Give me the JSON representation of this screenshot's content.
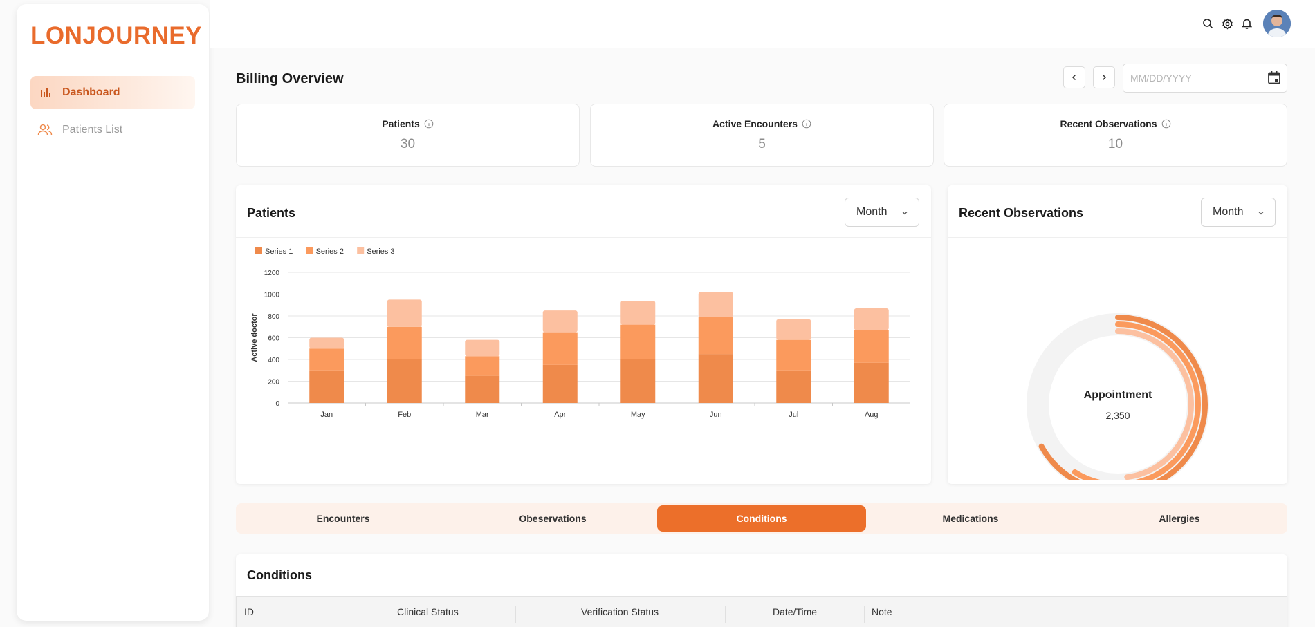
{
  "app": {
    "logo": "LONJOURNEY"
  },
  "sidebar": {
    "items": [
      {
        "label": "Dashboard",
        "icon": "bar-chart-icon",
        "active": true
      },
      {
        "label": "Patients List",
        "icon": "users-icon",
        "active": false
      }
    ]
  },
  "header": {
    "icons": [
      "search-icon",
      "gear-icon",
      "bell-icon"
    ]
  },
  "page": {
    "title": "Billing Overview",
    "date_placeholder": "MM/DD/YYYY"
  },
  "stats": [
    {
      "label": "Patients",
      "value": "30"
    },
    {
      "label": "Active Encounters",
      "value": "5"
    },
    {
      "label": "Recent Observations",
      "value": "10"
    }
  ],
  "patients_panel": {
    "title": "Patients",
    "period": "Month"
  },
  "observations_panel": {
    "title": "Recent Observations",
    "period": "Month",
    "center_label": "Appointment",
    "center_value": "2,350"
  },
  "colors": {
    "accent": "#ec6f2a",
    "series1": "#ef8a4b",
    "series2": "#fb9a5d",
    "series3": "#fcc0a0",
    "logo": "#e96b2c"
  },
  "chart_data": [
    {
      "type": "bar",
      "stacked": true,
      "categories": [
        "Jan",
        "Feb",
        "Mar",
        "Apr",
        "May",
        "Jun",
        "Jul",
        "Aug"
      ],
      "series": [
        {
          "name": "Series 1",
          "values": [
            300,
            400,
            250,
            350,
            400,
            450,
            300,
            370
          ]
        },
        {
          "name": "Series 2",
          "values": [
            200,
            300,
            180,
            300,
            320,
            340,
            280,
            300
          ]
        },
        {
          "name": "Series 3",
          "values": [
            100,
            250,
            150,
            200,
            220,
            230,
            190,
            200
          ]
        }
      ],
      "ylabel": "Active doctor",
      "ylim": [
        0,
        1200
      ],
      "yticks": [
        0,
        200,
        400,
        600,
        800,
        1000,
        1200
      ],
      "legend": "top-left",
      "grid": true
    },
    {
      "type": "radial-bar",
      "series": [
        {
          "values": [
            0.67
          ]
        },
        {
          "values": [
            0.59
          ]
        },
        {
          "values": [
            0.48
          ]
        }
      ]
    }
  ],
  "tabs": [
    {
      "label": "Encounters",
      "active": false
    },
    {
      "label": "Obeservations",
      "active": false
    },
    {
      "label": "Conditions",
      "active": true
    },
    {
      "label": "Medications",
      "active": false
    },
    {
      "label": "Allergies",
      "active": false
    }
  ],
  "table": {
    "title": "Conditions",
    "columns": [
      "ID",
      "Clinical Status",
      "Verification Status",
      "Date/Time",
      "Note"
    ]
  }
}
